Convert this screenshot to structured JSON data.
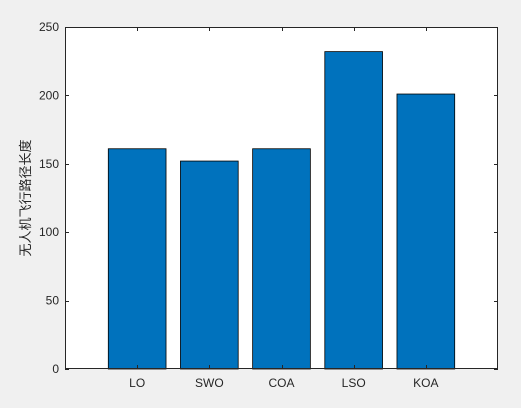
{
  "chart_data": {
    "type": "bar",
    "title": "",
    "xlabel": "",
    "ylabel": "无人机飞行路径长度",
    "categories": [
      "LO",
      "SWO",
      "COA",
      "LSO",
      "KOA"
    ],
    "values": [
      161,
      152,
      161,
      232,
      201
    ],
    "ylim": [
      0,
      250
    ],
    "yticks": [
      0,
      50,
      100,
      150,
      200,
      250
    ],
    "grid": false,
    "legend": "none",
    "colors": {
      "bar_fill": "#0072BD",
      "bar_edge": "#000000",
      "axes_background": "#ffffff",
      "figure_background": "#f0f0f0",
      "axis_color": "#262626"
    }
  }
}
